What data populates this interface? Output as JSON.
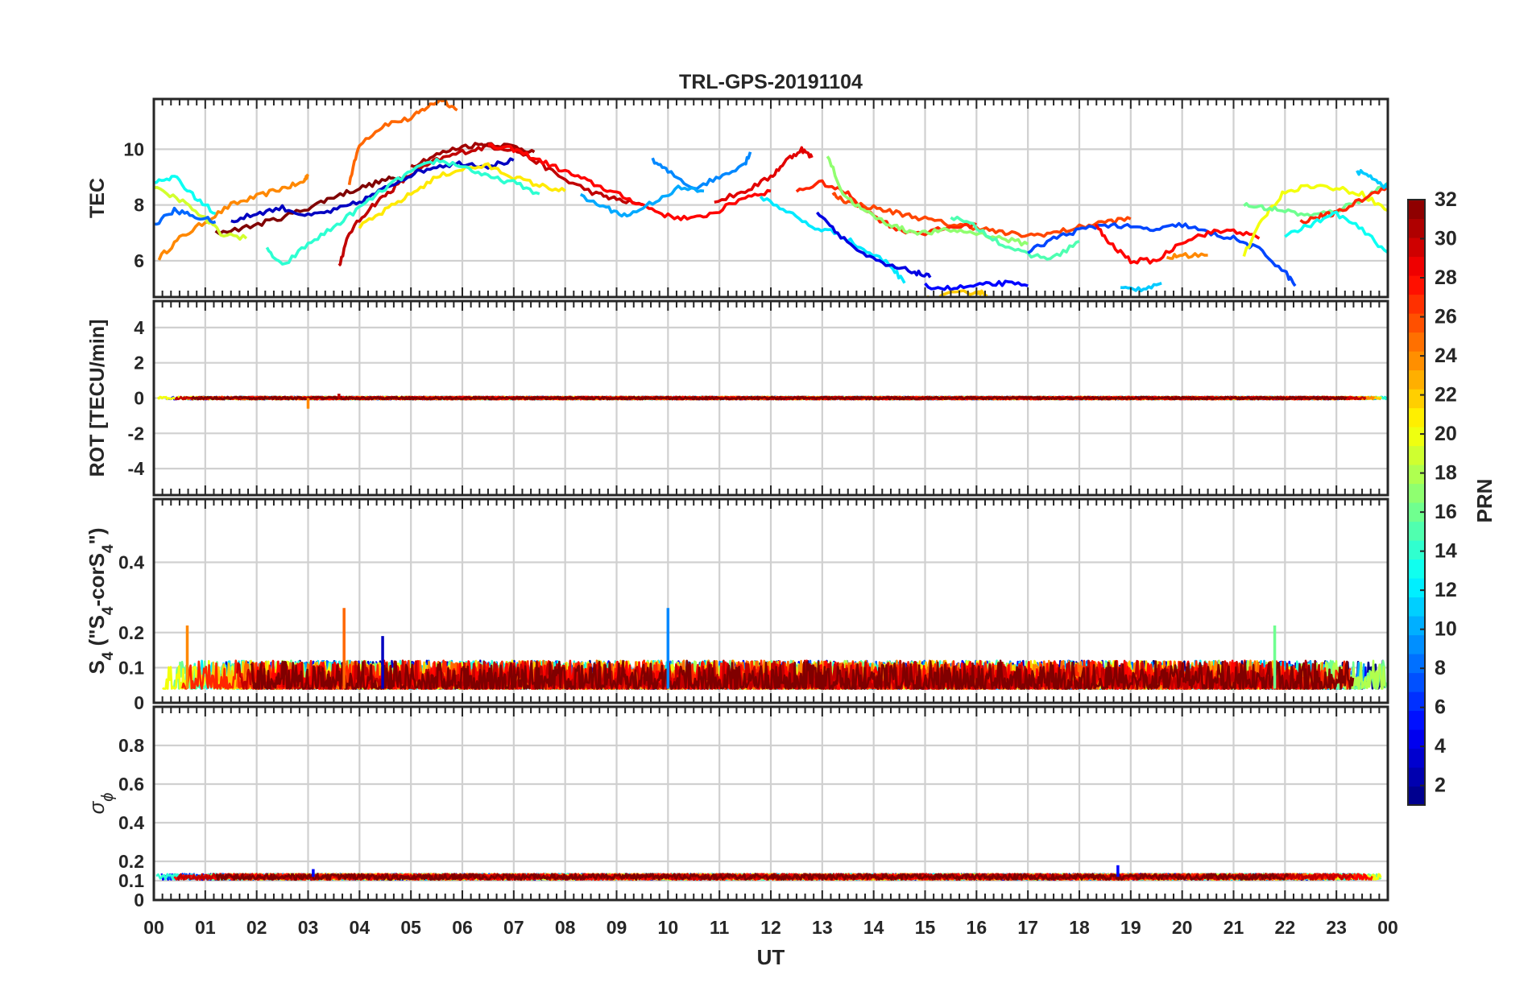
{
  "chart_data": {
    "type": "line",
    "title": "TRL-GPS-20191104",
    "xlabel": "UT",
    "x_tick_labels": [
      "00",
      "01",
      "02",
      "03",
      "04",
      "05",
      "06",
      "07",
      "08",
      "09",
      "10",
      "11",
      "12",
      "13",
      "14",
      "15",
      "16",
      "17",
      "18",
      "19",
      "20",
      "21",
      "22",
      "23",
      "00"
    ],
    "xlim": [
      0,
      24
    ],
    "colorbar": {
      "label": "PRN",
      "ticks": [
        "2",
        "4",
        "6",
        "8",
        "10",
        "12",
        "14",
        "16",
        "18",
        "20",
        "22",
        "24",
        "26",
        "28",
        "30",
        "32"
      ],
      "range": [
        1,
        32
      ],
      "colormap": "jet"
    },
    "panels": [
      {
        "ylabel": "TEC",
        "ylim": [
          4.7,
          11.8
        ],
        "yticks": [
          6,
          8,
          10
        ],
        "ytick_labels": [
          "6",
          "8",
          "10"
        ],
        "series": [
          {
            "prn": 24,
            "x": [
              0.1,
              0.5,
              1.0,
              1.5,
              2.0,
              2.5,
              2.9,
              3.0
            ],
            "y": [
              6.1,
              6.8,
              7.4,
              8.0,
              8.3,
              8.6,
              8.8,
              9.1
            ]
          },
          {
            "prn": 25,
            "x": [
              3.8,
              4.0,
              4.5,
              5.0,
              5.3,
              5.6,
              5.9
            ],
            "y": [
              8.8,
              10.2,
              10.9,
              11.1,
              11.5,
              11.8,
              11.4
            ]
          },
          {
            "prn": 30,
            "x": [
              3.6,
              3.8,
              4.2,
              4.6,
              5.0,
              5.5,
              6.0,
              6.5,
              7.0,
              7.5,
              8.0,
              8.6,
              9.0,
              9.5
            ],
            "y": [
              5.8,
              7.0,
              7.9,
              8.5,
              9.1,
              9.6,
              9.9,
              10.1,
              10.0,
              9.5,
              8.9,
              8.4,
              8.2,
              8.0
            ]
          },
          {
            "prn": 32,
            "x": [
              1.2,
              1.8,
              2.4,
              3.0,
              3.5,
              4.0,
              4.5,
              4.8
            ],
            "y": [
              7.0,
              7.2,
              7.5,
              7.9,
              8.3,
              8.6,
              8.9,
              9.0
            ]
          },
          {
            "prn": 31,
            "x": [
              5.0,
              5.5,
              6.0,
              6.5,
              7.0,
              7.4
            ],
            "y": [
              9.4,
              9.8,
              10.1,
              10.2,
              10.1,
              9.9
            ]
          },
          {
            "prn": 28,
            "x": [
              6.5,
              7.0,
              7.5,
              8.0,
              8.5,
              9.0,
              9.5,
              10.0,
              10.5,
              11.0,
              11.5,
              12.0
            ],
            "y": [
              10.1,
              10.0,
              9.6,
              9.2,
              8.8,
              8.4,
              8.0,
              7.6,
              7.5,
              7.8,
              8.3,
              8.5
            ]
          },
          {
            "prn": 3,
            "x": [
              1.5,
              2.0,
              2.5,
              3.0,
              3.5,
              4.0,
              4.5,
              5.0,
              5.5,
              6.0,
              6.5,
              7.0
            ],
            "y": [
              7.4,
              7.7,
              7.9,
              7.6,
              7.8,
              8.1,
              8.6,
              9.1,
              9.4,
              9.5,
              9.4,
              9.6
            ]
          },
          {
            "prn": 21,
            "x": [
              4.0,
              4.5,
              5.0,
              5.5,
              6.0,
              6.5,
              7.0,
              7.5,
              8.0
            ],
            "y": [
              7.2,
              7.8,
              8.4,
              9.0,
              9.3,
              9.4,
              9.0,
              8.7,
              8.5
            ]
          },
          {
            "prn": 14,
            "x": [
              2.2,
              2.5,
              3.0,
              3.5,
              4.0,
              4.5,
              5.0,
              5.5,
              6.0,
              6.5,
              7.0,
              7.5
            ],
            "y": [
              6.4,
              5.8,
              6.6,
              7.2,
              7.9,
              8.6,
              9.2,
              9.6,
              9.4,
              9.0,
              8.8,
              8.4
            ]
          },
          {
            "prn": 9,
            "x": [
              9.7,
              10.0,
              10.5,
              11.0,
              11.5,
              11.6
            ],
            "y": [
              9.6,
              9.2,
              8.6,
              9.0,
              9.5,
              9.9
            ]
          },
          {
            "prn": 29,
            "x": [
              10.9,
              11.5,
              12.0,
              12.3,
              12.6,
              12.8
            ],
            "y": [
              8.1,
              8.5,
              9.0,
              9.6,
              10.0,
              9.7
            ]
          },
          {
            "prn": 26,
            "x": [
              13.2,
              13.5,
              14.0,
              14.5,
              15.0,
              15.5,
              16.0,
              16.5,
              17.0,
              17.5,
              18.0,
              18.5,
              19.0
            ],
            "y": [
              8.4,
              8.1,
              7.9,
              7.7,
              7.5,
              7.3,
              7.2,
              7.0,
              6.9,
              7.0,
              7.2,
              7.4,
              7.5
            ]
          },
          {
            "prn": 27,
            "x": [
              12.5,
              13.0,
              13.5,
              14.0,
              14.5,
              15.0,
              15.5,
              16.0
            ],
            "y": [
              8.5,
              8.8,
              8.4,
              7.6,
              7.1,
              7.0,
              7.2,
              7.3
            ]
          },
          {
            "prn": 17,
            "x": [
              13.1,
              13.4,
              13.8,
              14.2,
              14.6,
              15.0,
              15.5,
              16.0,
              16.5,
              17.0
            ],
            "y": [
              9.8,
              8.4,
              7.8,
              7.4,
              7.1,
              7.0,
              7.1,
              7.0,
              6.8,
              6.6
            ]
          },
          {
            "prn": 12,
            "x": [
              11.8,
              12.3,
              12.8,
              13.3,
              13.8,
              14.3,
              14.6
            ],
            "y": [
              8.3,
              7.8,
              7.2,
              7.0,
              6.4,
              5.9,
              5.2
            ]
          },
          {
            "prn": 4,
            "x": [
              12.9,
              13.3,
              13.8,
              14.3,
              14.8,
              15.1
            ],
            "y": [
              7.8,
              7.0,
              6.2,
              5.8,
              5.6,
              5.4
            ]
          },
          {
            "prn": 5,
            "x": [
              15.0,
              15.5,
              16.0,
              16.5,
              17.0
            ],
            "y": [
              5.1,
              5.0,
              5.1,
              5.2,
              5.1
            ]
          },
          {
            "prn": 22,
            "x": [
              14.6,
              15.0,
              15.5,
              16.0,
              16.2
            ],
            "y": [
              4.6,
              4.6,
              4.8,
              4.9,
              4.8
            ]
          },
          {
            "prn": 15,
            "x": [
              15.5,
              16.0,
              16.5,
              17.0,
              17.5,
              18.0
            ],
            "y": [
              7.6,
              7.2,
              6.6,
              6.2,
              6.1,
              6.7
            ]
          },
          {
            "prn": 7,
            "x": [
              17.0,
              17.5,
              18.0,
              18.5,
              19.0,
              19.5,
              20.0,
              20.5,
              21.0,
              21.5,
              22.0,
              22.2
            ],
            "y": [
              6.3,
              6.8,
              7.1,
              7.3,
              7.2,
              7.1,
              7.3,
              7.0,
              6.8,
              6.4,
              5.6,
              5.1
            ]
          },
          {
            "prn": 28,
            "x": [
              18.3,
              18.6,
              19.0,
              19.5,
              20.0,
              20.5,
              21.0,
              21.5
            ],
            "y": [
              7.3,
              6.6,
              6.0,
              6.0,
              6.7,
              7.0,
              7.1,
              6.8
            ]
          },
          {
            "prn": 24,
            "x": [
              19.7,
              20.0,
              20.5
            ],
            "y": [
              6.1,
              6.2,
              6.2
            ]
          },
          {
            "prn": 11,
            "x": [
              18.8,
              19.2,
              19.6
            ],
            "y": [
              5.0,
              5.0,
              5.2
            ]
          },
          {
            "prn": 20,
            "x": [
              21.2,
              21.6,
              22.0,
              22.5,
              23.0,
              23.5,
              24.0
            ],
            "y": [
              6.2,
              7.6,
              8.5,
              8.7,
              8.6,
              8.4,
              7.8
            ]
          },
          {
            "prn": 16,
            "x": [
              21.2,
              21.6,
              22.0,
              22.5,
              23.0,
              23.5,
              24.0
            ],
            "y": [
              8.0,
              7.9,
              7.8,
              7.6,
              7.8,
              8.2,
              8.8
            ]
          },
          {
            "prn": 27,
            "x": [
              22.3,
              22.7,
              23.0,
              23.5,
              24.0
            ],
            "y": [
              7.4,
              7.6,
              7.7,
              8.2,
              8.7
            ]
          },
          {
            "prn": 13,
            "x": [
              22.0,
              22.5,
              23.0,
              23.5,
              24.0
            ],
            "y": [
              6.9,
              7.3,
              7.7,
              7.1,
              6.3
            ]
          },
          {
            "prn": 11,
            "x": [
              23.4,
              23.7,
              24.0
            ],
            "y": [
              9.2,
              9.0,
              8.6
            ]
          },
          {
            "prn": 13,
            "x": [
              0.0,
              0.4,
              0.8,
              1.2
            ],
            "y": [
              8.8,
              9.0,
              8.3,
              7.7
            ]
          },
          {
            "prn": 19,
            "x": [
              0.0,
              0.5,
              1.0,
              1.3,
              1.8
            ],
            "y": [
              8.6,
              8.2,
              7.5,
              7.0,
              6.8
            ]
          },
          {
            "prn": 8,
            "x": [
              0.0,
              0.4,
              0.8,
              1.2
            ],
            "y": [
              7.3,
              7.8,
              7.6,
              7.4
            ]
          },
          {
            "prn": 10,
            "x": [
              8.3,
              8.8,
              9.2,
              9.7,
              10.2,
              10.7
            ],
            "y": [
              8.3,
              7.9,
              7.6,
              8.1,
              8.6,
              8.5
            ]
          }
        ]
      },
      {
        "ylabel": "ROT [TECU/min]",
        "ylim": [
          -5.5,
          5.5
        ],
        "yticks": [
          -4,
          -2,
          0,
          2,
          4
        ],
        "ytick_labels": [
          "-4",
          "-2",
          "0",
          "2",
          "4"
        ],
        "baseline": 0,
        "noise_amplitude": 0.15,
        "spikes": [
          {
            "x": 3.0,
            "y": -0.6,
            "prn": 24
          },
          {
            "x": 3.6,
            "y": 0.25,
            "prn": 30
          }
        ]
      },
      {
        "ylabel": "S4 (\"S4-corS4\")",
        "ylim": [
          0,
          0.58
        ],
        "yticks": [
          0,
          0.1,
          0.2,
          0.4
        ],
        "ytick_labels": [
          "0",
          "0.1",
          "0.2",
          "0.4"
        ],
        "baseline": 0.04,
        "noise_amplitude": 0.08,
        "spikes": [
          {
            "x": 0.65,
            "y": 0.22,
            "prn": 24
          },
          {
            "x": 3.7,
            "y": 0.27,
            "prn": 25
          },
          {
            "x": 4.45,
            "y": 0.19,
            "prn": 3
          },
          {
            "x": 10.0,
            "y": 0.27,
            "prn": 9
          },
          {
            "x": 21.8,
            "y": 0.22,
            "prn": 16
          }
        ]
      },
      {
        "ylabel": "σϕ",
        "ylim": [
          0,
          1.0
        ],
        "yticks": [
          0,
          0.1,
          0.2,
          0.4,
          0.6,
          0.8
        ],
        "ytick_labels": [
          "0",
          "0.1",
          "0.2",
          "0.4",
          "0.6",
          "0.8"
        ],
        "baseline": 0.12,
        "noise_amplitude": 0.03,
        "spikes": [
          {
            "x": 3.1,
            "y": 0.16,
            "prn": 5
          },
          {
            "x": 18.75,
            "y": 0.18,
            "prn": 5
          }
        ]
      }
    ]
  }
}
